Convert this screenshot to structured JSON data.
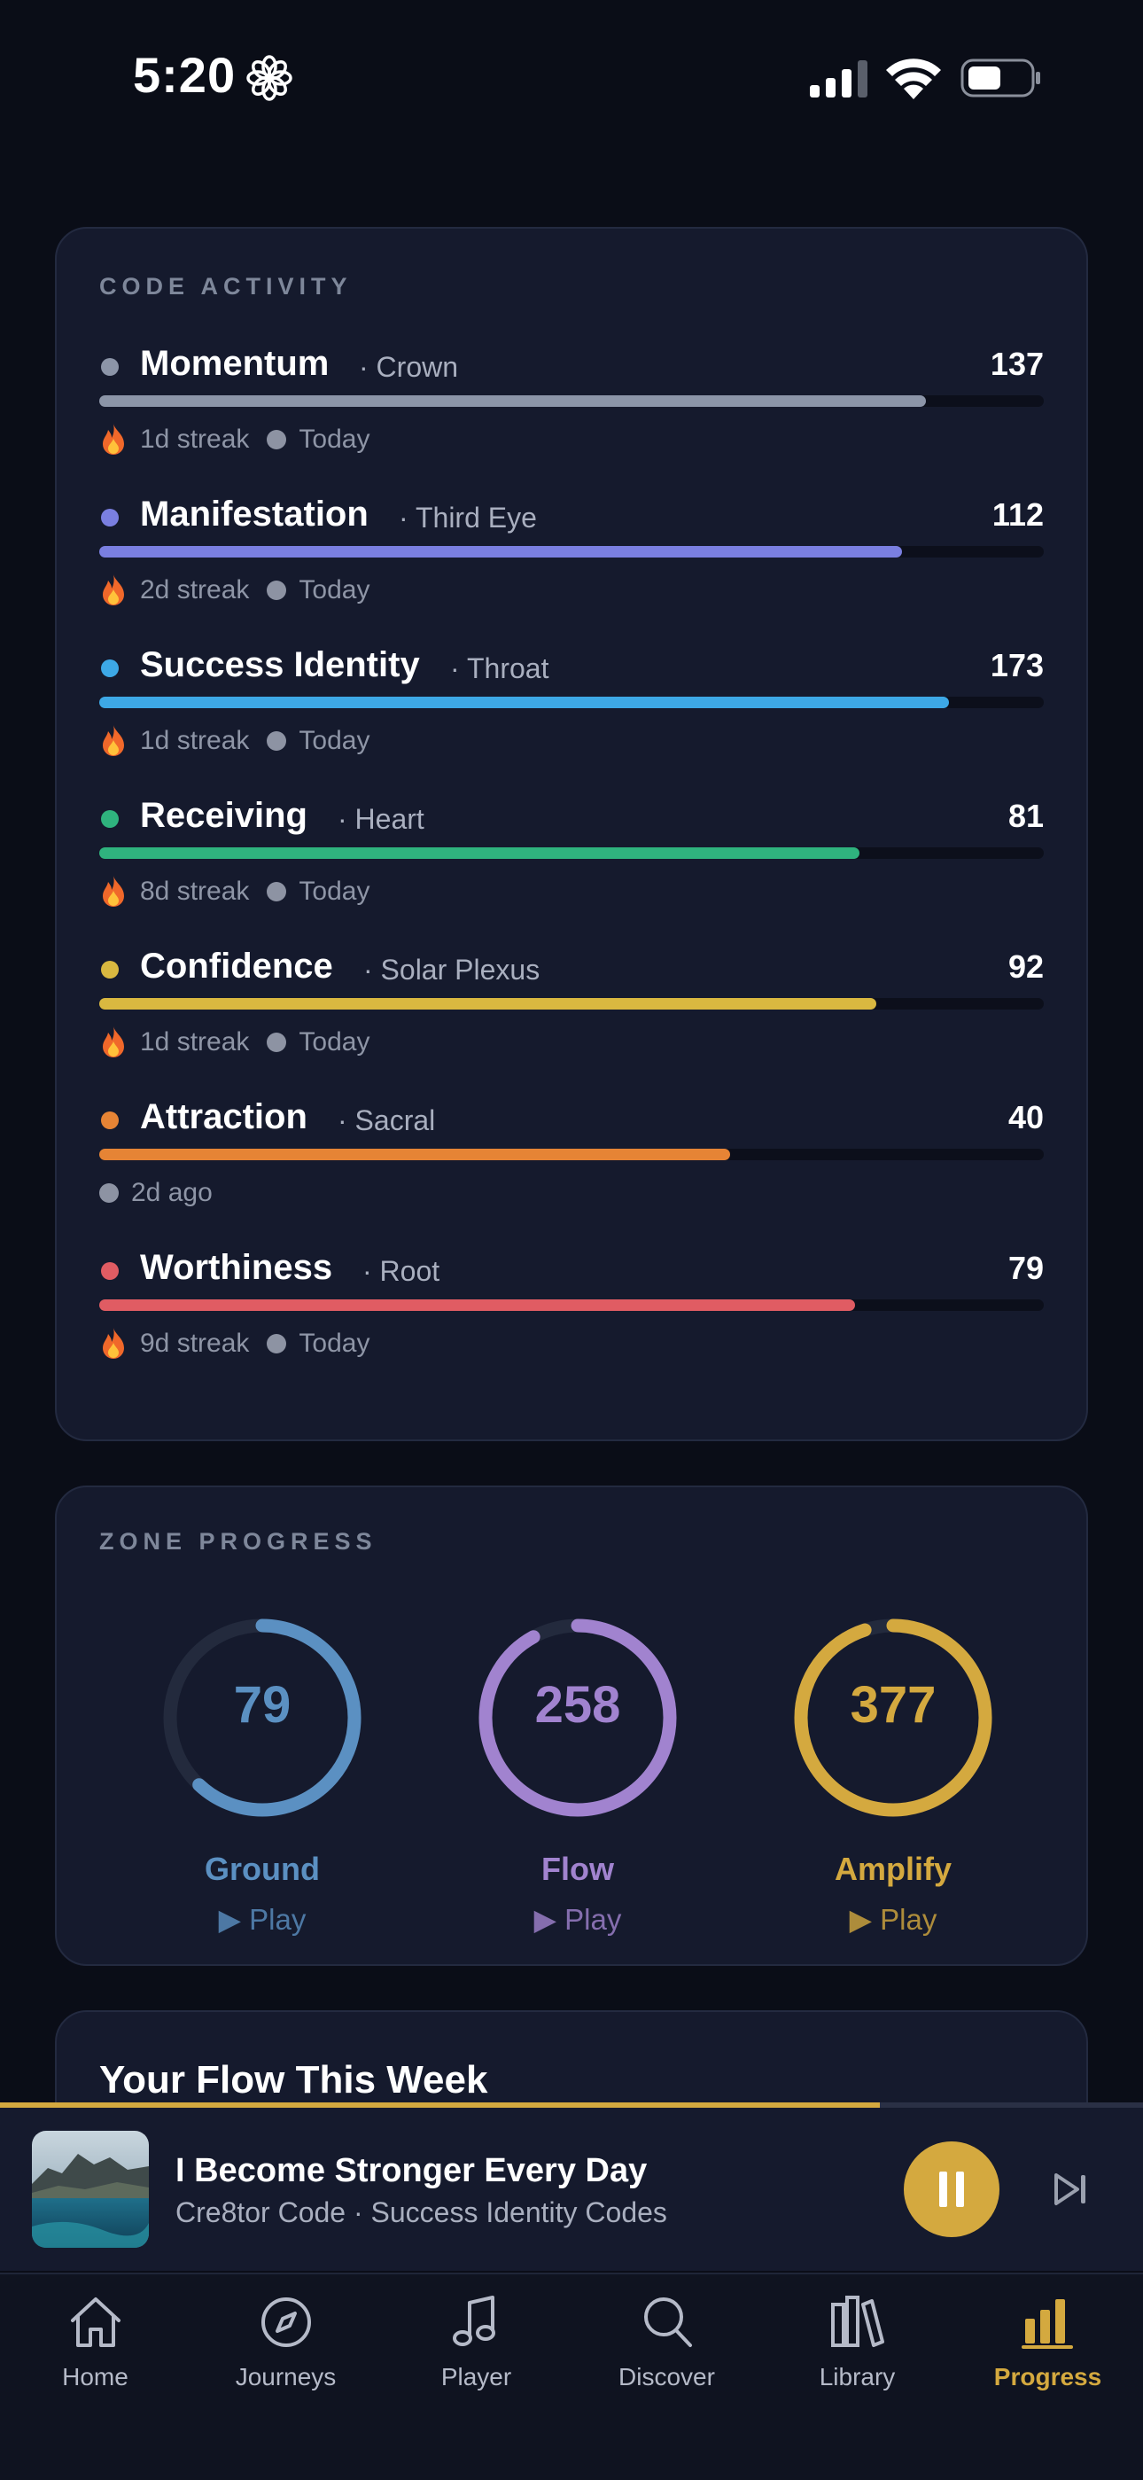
{
  "status_bar": {
    "time": "5:20"
  },
  "code_activity": {
    "label": "CODE ACTIVITY",
    "items": [
      {
        "name": "Momentum",
        "chakra": "· Crown",
        "count": "137",
        "progress": 0.875,
        "color": "#8c95a8",
        "streak": "1d streak",
        "last": "Today"
      },
      {
        "name": "Manifestation",
        "chakra": "· Third Eye",
        "count": "112",
        "progress": 0.85,
        "color": "#7a7fe0",
        "streak": "2d streak",
        "last": "Today"
      },
      {
        "name": "Success Identity",
        "chakra": "· Throat",
        "count": "173",
        "progress": 0.9,
        "color": "#3da8e6",
        "streak": "1d streak",
        "last": "Today"
      },
      {
        "name": "Receiving",
        "chakra": "· Heart",
        "count": "81",
        "progress": 0.805,
        "color": "#2fb37e",
        "streak": "8d streak",
        "last": "Today"
      },
      {
        "name": "Confidence",
        "chakra": "· Solar Plexus",
        "count": "92",
        "progress": 0.823,
        "color": "#d9b840",
        "streak": "1d streak",
        "last": "Today"
      },
      {
        "name": "Attraction",
        "chakra": "· Sacral",
        "count": "40",
        "progress": 0.668,
        "color": "#e68435",
        "streak": "",
        "last": "2d ago"
      },
      {
        "name": "Worthiness",
        "chakra": "· Root",
        "count": "79",
        "progress": 0.8,
        "color": "#e05c63",
        "streak": "9d streak",
        "last": "Today"
      }
    ]
  },
  "zone_progress": {
    "label": "ZONE PROGRESS",
    "zones": [
      {
        "name": "Ground",
        "value": "79",
        "progress": 0.62,
        "color": "#5b90c2",
        "play_label": "▶ Play"
      },
      {
        "name": "Flow",
        "value": "258",
        "progress": 0.92,
        "color": "#a183cf",
        "play_label": "▶ Play"
      },
      {
        "name": "Amplify",
        "value": "377",
        "progress": 0.95,
        "color": "#d4a93f",
        "play_label": "▶ Play"
      }
    ]
  },
  "weekly": {
    "title": "Your Flow This Week"
  },
  "mini_player": {
    "title": "I Become Stronger Every Day",
    "subtitle": "Cre8tor Code · Success Identity Codes",
    "progress": 0.77
  },
  "tabs": [
    {
      "label": "Home",
      "icon": "home-icon",
      "active": false
    },
    {
      "label": "Journeys",
      "icon": "compass-icon",
      "active": false
    },
    {
      "label": "Player",
      "icon": "music-note-icon",
      "active": false
    },
    {
      "label": "Discover",
      "icon": "search-icon",
      "active": false
    },
    {
      "label": "Library",
      "icon": "library-icon",
      "active": false
    },
    {
      "label": "Progress",
      "icon": "bar-chart-icon",
      "active": true
    }
  ],
  "colors": {
    "accent": "#d4a93f",
    "background": "#0a0d17",
    "card": "#151a2d"
  }
}
